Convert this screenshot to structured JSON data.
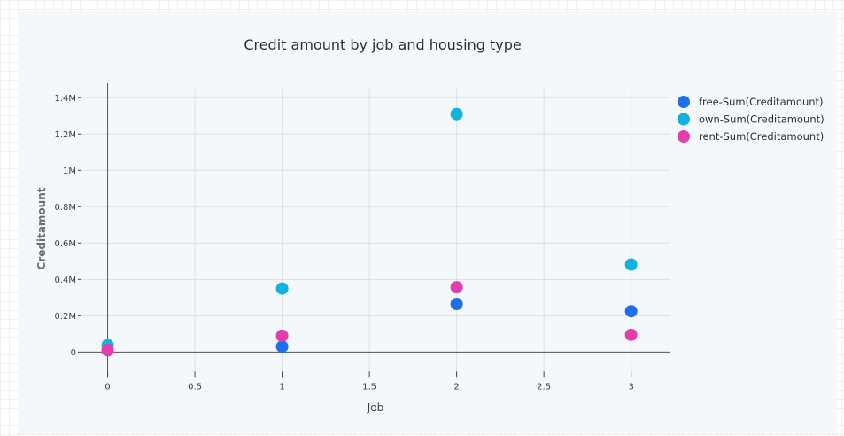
{
  "chart_data": {
    "type": "scatter",
    "title": "Credit amount by job and housing type",
    "xlabel": "Job",
    "ylabel": "Creditamount",
    "xlim": [
      -0.15,
      3.22
    ],
    "ylim": [
      -130000,
      1450000
    ],
    "x_ticks": [
      0,
      0.5,
      1,
      1.5,
      2,
      2.5,
      3
    ],
    "x_tick_labels": [
      "0",
      "0.5",
      "1",
      "1.5",
      "2",
      "2.5",
      "3"
    ],
    "y_ticks": [
      0,
      200000,
      400000,
      600000,
      800000,
      1000000,
      1200000,
      1400000
    ],
    "y_tick_labels": [
      "0",
      "0.2M",
      "0.4M",
      "0.6M",
      "0.8M",
      "1M",
      "1.2M",
      "1.4M"
    ],
    "grid": true,
    "legend_position": "top-right",
    "series": [
      {
        "name": "free-Sum(Creditamount)",
        "color": "#1f6fe8",
        "points": [
          {
            "x": 0,
            "y": 10000
          },
          {
            "x": 1,
            "y": 30000
          },
          {
            "x": 2,
            "y": 265000
          },
          {
            "x": 3,
            "y": 225000
          }
        ]
      },
      {
        "name": "own-Sum(Creditamount)",
        "color": "#11b3dc",
        "points": [
          {
            "x": 0,
            "y": 38000
          },
          {
            "x": 1,
            "y": 350000
          },
          {
            "x": 2,
            "y": 1310000
          },
          {
            "x": 3,
            "y": 482000
          }
        ]
      },
      {
        "name": "rent-Sum(Creditamount)",
        "color": "#e43dad",
        "points": [
          {
            "x": 0,
            "y": 12000
          },
          {
            "x": 1,
            "y": 90000
          },
          {
            "x": 2,
            "y": 357000
          },
          {
            "x": 3,
            "y": 95000
          }
        ]
      }
    ]
  }
}
